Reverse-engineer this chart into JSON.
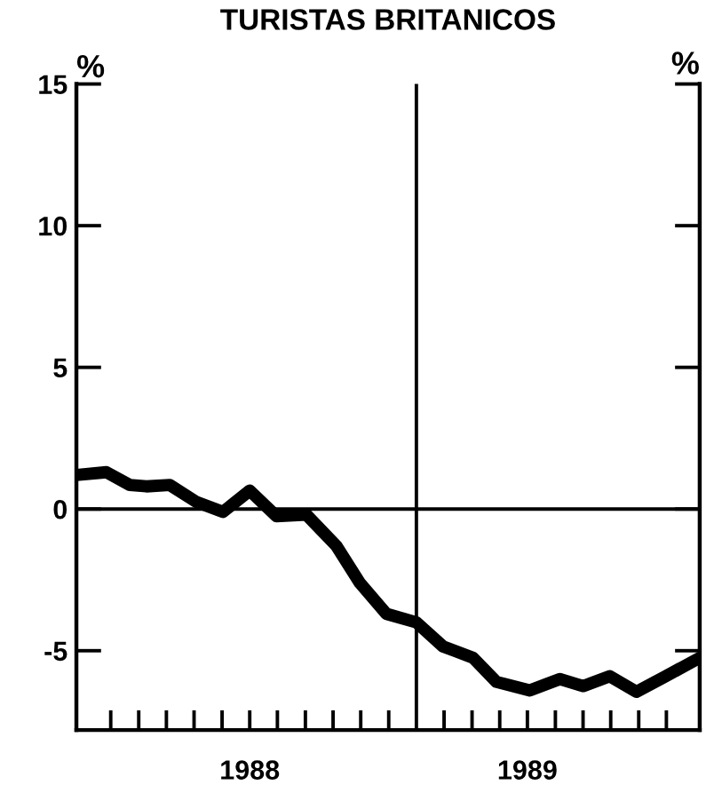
{
  "chart_data": {
    "type": "line",
    "title": "TURISTAS BRITANICOS",
    "ylabel": "%",
    "y2label": "%",
    "x": [
      1987.98,
      1988.07,
      1988.14,
      1988.19,
      1988.26,
      1988.34,
      1988.42,
      1988.5,
      1988.58,
      1988.67,
      1988.76,
      1988.83,
      1988.91,
      1989.0,
      1989.08,
      1989.17,
      1989.24,
      1989.34,
      1989.43,
      1989.5,
      1989.58,
      1989.66,
      1989.74,
      1989.85
    ],
    "series": [
      {
        "color": "#000000",
        "values": [
          1.2,
          1.3,
          0.85,
          0.8,
          0.85,
          0.25,
          -0.1,
          0.65,
          -0.25,
          -0.2,
          -1.3,
          -2.6,
          -3.7,
          -4.0,
          -4.85,
          -5.25,
          -6.1,
          -6.4,
          -6.0,
          -6.25,
          -5.9,
          -6.45,
          -5.95,
          -5.25
        ]
      }
    ],
    "xlim": [
      1987.98,
      1989.85
    ],
    "ylim": [
      -7.8,
      15
    ],
    "xticks": [
      {
        "value": 1988.083,
        "label": null
      },
      {
        "value": 1988.167,
        "label": null
      },
      {
        "value": 1988.25,
        "label": null
      },
      {
        "value": 1988.333,
        "label": null
      },
      {
        "value": 1988.417,
        "label": null
      },
      {
        "value": 1988.5,
        "label": "1988"
      },
      {
        "value": 1988.583,
        "label": null
      },
      {
        "value": 1988.667,
        "label": null
      },
      {
        "value": 1988.75,
        "label": null
      },
      {
        "value": 1988.833,
        "label": null
      },
      {
        "value": 1988.917,
        "label": null
      },
      {
        "value": 1989.083,
        "label": null
      },
      {
        "value": 1989.167,
        "label": null
      },
      {
        "value": 1989.25,
        "label": null
      },
      {
        "value": 1989.333,
        "label": "1989"
      },
      {
        "value": 1989.417,
        "label": null
      },
      {
        "value": 1989.5,
        "label": null
      },
      {
        "value": 1989.583,
        "label": null
      },
      {
        "value": 1989.667,
        "label": null
      },
      {
        "value": 1989.75,
        "label": null
      }
    ],
    "yticks": [
      -5,
      0,
      5,
      10,
      15
    ],
    "ref_lines": [
      {
        "axis": "y",
        "value": 0,
        "color": "#000000"
      },
      {
        "axis": "x",
        "value": 1989.0,
        "color": "#000000"
      }
    ],
    "grid": false,
    "legend": false,
    "marker": "none",
    "line_style": "solid"
  }
}
